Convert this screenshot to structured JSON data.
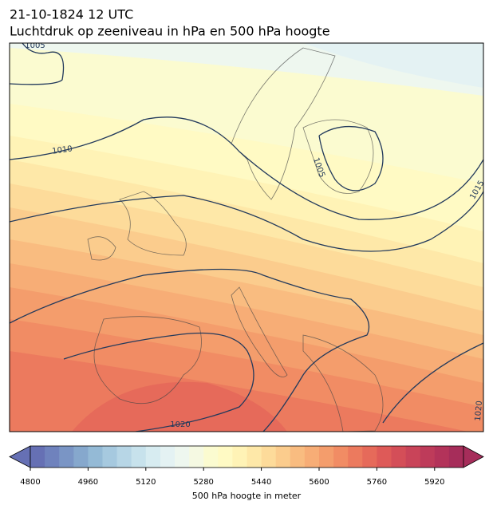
{
  "title": "21-10-1824 12 UTC",
  "subtitle": "Luchtdruk op zeeniveau in hPa en 500 hPa hoogte",
  "contour_labels": [
    1005,
    1010,
    1005,
    1015,
    1020,
    1020
  ],
  "colorbar": {
    "label": "500 hPa hoogte in meter",
    "lim": [
      4800,
      6000
    ],
    "ticks": [
      4800,
      4960,
      5120,
      5280,
      5440,
      5600,
      5760,
      5920
    ],
    "colors": [
      "#6670b4",
      "#6f82bd",
      "#7a95c5",
      "#86a8cd",
      "#94bad6",
      "#a6c9df",
      "#b7d6e6",
      "#c7e2ec",
      "#d7ecf1",
      "#e4f2f3",
      "#eef7ef",
      "#f5f9e2",
      "#fbfbd0",
      "#fffac4",
      "#fff3b6",
      "#fee8a8",
      "#fddb9a",
      "#fbcc8d",
      "#f9bc80",
      "#f7ad76",
      "#f49d6c",
      "#f18c64",
      "#ec7a5e",
      "#e66a5a",
      "#de5a58",
      "#d44e58",
      "#c94459",
      "#be3b5a",
      "#b3335a",
      "#a62d5a"
    ]
  }
}
